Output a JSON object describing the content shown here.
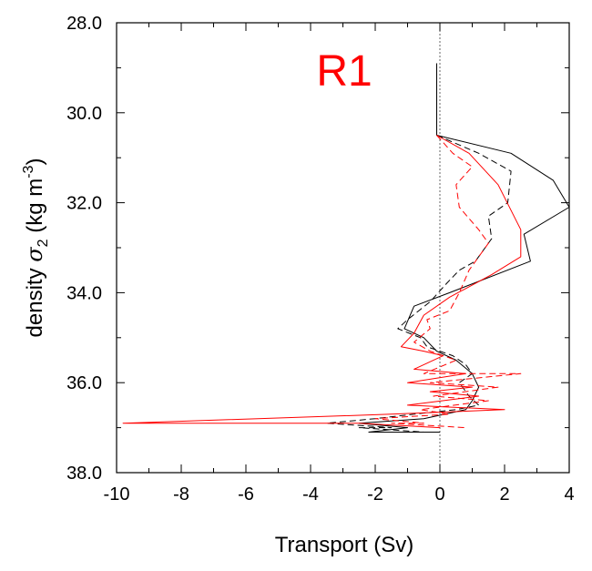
{
  "chart_data": {
    "type": "line",
    "panel_label": "R1",
    "panel_label_color": "#ff0000",
    "xlabel": "Transport (Sv)",
    "ylabel_prefix": "density ",
    "ylabel_symbol": "σ",
    "ylabel_subscript": "2",
    "ylabel_units_open": " (kg m",
    "ylabel_units_exp": "-3",
    "ylabel_units_close": ")",
    "xlim": [
      -10,
      4
    ],
    "ylim": [
      28.0,
      38.0
    ],
    "y_inverted": true,
    "xticks": [
      -10,
      -8,
      -6,
      -4,
      -2,
      0,
      2,
      4
    ],
    "xtick_labels": [
      "-10",
      "-8",
      "-6",
      "-4",
      "-2",
      "0",
      "2",
      "4"
    ],
    "yticks": [
      28.0,
      30.0,
      32.0,
      34.0,
      36.0,
      38.0
    ],
    "ytick_labels": [
      "28.0",
      "30.0",
      "32.0",
      "34.0",
      "36.0",
      "38.0"
    ],
    "zero_line": {
      "x": 0,
      "style": "dotted",
      "color": "#555555"
    },
    "grid": false,
    "series": [
      {
        "color": "#000000",
        "dash": "solid",
        "points": [
          [
            -0.1,
            28.9
          ],
          [
            -0.1,
            29.5
          ],
          [
            -0.1,
            30.5
          ],
          [
            2.2,
            30.9
          ],
          [
            3.5,
            31.5
          ],
          [
            4.0,
            32.1
          ],
          [
            2.6,
            32.7
          ],
          [
            2.8,
            33.3
          ],
          [
            0.3,
            34.0
          ],
          [
            -0.8,
            34.3
          ],
          [
            -1.1,
            34.8
          ],
          [
            -0.5,
            35.0
          ],
          [
            -0.1,
            35.3
          ],
          [
            0.5,
            35.5
          ],
          [
            1.0,
            35.8
          ],
          [
            1.2,
            36.1
          ],
          [
            1.0,
            36.4
          ],
          [
            0.8,
            36.6
          ],
          [
            -0.5,
            36.8
          ],
          [
            -2.5,
            36.9
          ],
          [
            -1.0,
            37.0
          ],
          [
            -2.2,
            37.1
          ],
          [
            0.0,
            37.1
          ]
        ]
      },
      {
        "color": "#000000",
        "dash": "dashed",
        "points": [
          [
            -0.1,
            30.5
          ],
          [
            1.2,
            30.9
          ],
          [
            2.2,
            31.3
          ],
          [
            2.1,
            32.0
          ],
          [
            1.5,
            32.3
          ],
          [
            1.6,
            32.8
          ],
          [
            1.1,
            33.3
          ],
          [
            0.6,
            33.5
          ],
          [
            0.2,
            33.8
          ],
          [
            -0.3,
            34.2
          ],
          [
            -1.0,
            34.6
          ],
          [
            -1.3,
            34.8
          ],
          [
            -0.6,
            35.0
          ],
          [
            -0.4,
            35.2
          ],
          [
            0.4,
            35.4
          ],
          [
            0.8,
            35.6
          ],
          [
            1.0,
            35.8
          ],
          [
            0.6,
            36.0
          ],
          [
            0.9,
            36.3
          ],
          [
            1.2,
            36.5
          ],
          [
            0.5,
            36.6
          ],
          [
            -0.8,
            36.7
          ],
          [
            -2.0,
            36.8
          ],
          [
            -3.5,
            36.9
          ],
          [
            -1.5,
            37.0
          ],
          [
            -2.5,
            37.0
          ],
          [
            -0.5,
            37.1
          ]
        ]
      },
      {
        "color": "#ff0000",
        "dash": "solid",
        "points": [
          [
            -0.1,
            30.5
          ],
          [
            0.9,
            30.9
          ],
          [
            1.8,
            31.6
          ],
          [
            2.5,
            32.6
          ],
          [
            2.5,
            33.2
          ],
          [
            1.6,
            33.6
          ],
          [
            0.3,
            34.1
          ],
          [
            -0.5,
            34.5
          ],
          [
            -0.8,
            34.9
          ],
          [
            -1.2,
            35.2
          ],
          [
            -0.5,
            35.3
          ],
          [
            0.1,
            35.4
          ],
          [
            -0.8,
            35.7
          ],
          [
            0.8,
            35.8
          ],
          [
            -1.0,
            36.0
          ],
          [
            1.0,
            36.1
          ],
          [
            -0.3,
            36.2
          ],
          [
            1.2,
            36.3
          ],
          [
            -1.0,
            36.5
          ],
          [
            2.0,
            36.6
          ],
          [
            -1.5,
            36.7
          ],
          [
            -9.8,
            36.9
          ],
          [
            -2.5,
            36.9
          ],
          [
            0.0,
            37.0
          ]
        ]
      },
      {
        "color": "#ff0000",
        "dash": "dashed",
        "points": [
          [
            -0.1,
            30.5
          ],
          [
            0.4,
            30.9
          ],
          [
            1.0,
            31.2
          ],
          [
            0.5,
            31.6
          ],
          [
            0.6,
            32.1
          ],
          [
            1.2,
            32.6
          ],
          [
            1.5,
            32.9
          ],
          [
            0.9,
            33.5
          ],
          [
            0.6,
            34.0
          ],
          [
            0.3,
            34.4
          ],
          [
            -0.4,
            34.6
          ],
          [
            -0.3,
            34.8
          ],
          [
            -0.8,
            35.1
          ],
          [
            -0.3,
            35.3
          ],
          [
            0.5,
            35.5
          ],
          [
            -0.5,
            35.8
          ],
          [
            2.5,
            35.8
          ],
          [
            -0.3,
            36.0
          ],
          [
            1.8,
            36.1
          ],
          [
            -0.2,
            36.3
          ],
          [
            1.5,
            36.4
          ],
          [
            -0.6,
            36.6
          ],
          [
            0.3,
            36.7
          ],
          [
            -2.0,
            36.8
          ],
          [
            -0.5,
            36.9
          ],
          [
            -1.5,
            36.9
          ],
          [
            0.8,
            37.0
          ]
        ]
      }
    ]
  }
}
